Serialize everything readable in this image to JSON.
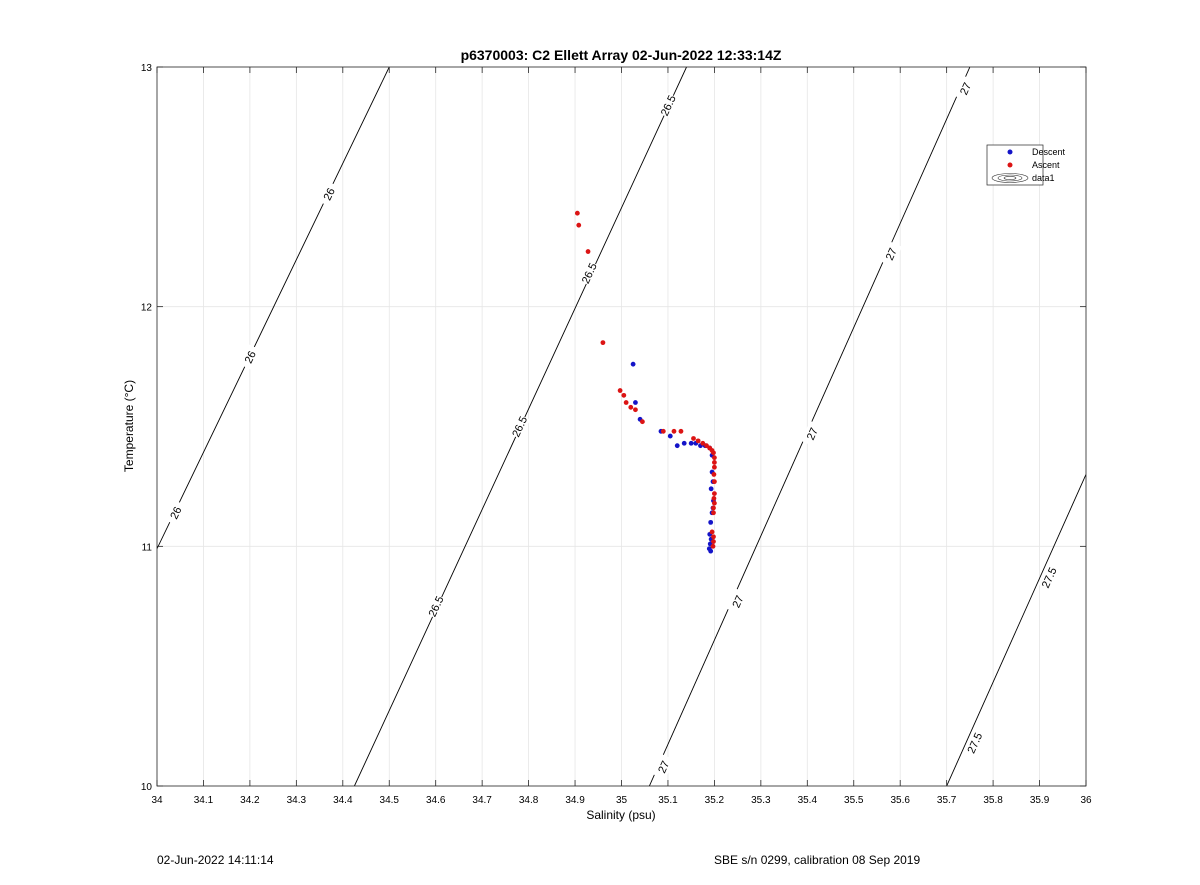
{
  "footer": {
    "left_text": "02-Jun-2022 14:11:14",
    "right_text": "SBE s/n 0299, calibration 08 Sep 2019"
  },
  "chart_data": {
    "type": "scatter",
    "title": "p6370003: C2 Ellett Array 02-Jun-2022 12:33:14Z",
    "xlabel": "Salinity (psu)",
    "ylabel": "Temperature (°C)",
    "xlim": [
      34,
      36
    ],
    "ylim": [
      10,
      13
    ],
    "xticks": [
      "34",
      "34.1",
      "34.2",
      "34.3",
      "34.4",
      "34.5",
      "34.6",
      "34.7",
      "34.8",
      "34.9",
      "35",
      "35.1",
      "35.2",
      "35.3",
      "35.4",
      "35.5",
      "35.6",
      "35.7",
      "35.8",
      "35.9",
      "36"
    ],
    "yticks": [
      "10",
      "11",
      "12",
      "13"
    ],
    "grid": true,
    "legend_position": "top-right",
    "colors": {
      "descent": "#1414c8",
      "ascent": "#dc1414",
      "contour": "#000000",
      "grid": "#e6e6e6"
    },
    "series": [
      {
        "name": "Descent",
        "color": "#1414c8",
        "points": [
          [
            35.025,
            11.76
          ],
          [
            35.03,
            11.6
          ],
          [
            35.04,
            11.53
          ],
          [
            35.085,
            11.48
          ],
          [
            35.105,
            11.46
          ],
          [
            35.12,
            11.42
          ],
          [
            35.135,
            11.43
          ],
          [
            35.15,
            11.43
          ],
          [
            35.16,
            11.43
          ],
          [
            35.17,
            11.42
          ],
          [
            35.18,
            11.42
          ],
          [
            35.19,
            11.41
          ],
          [
            35.195,
            11.38
          ],
          [
            35.195,
            11.31
          ],
          [
            35.197,
            11.27
          ],
          [
            35.193,
            11.24
          ],
          [
            35.198,
            11.19
          ],
          [
            35.197,
            11.16
          ],
          [
            35.195,
            11.14
          ],
          [
            35.192,
            11.1
          ],
          [
            35.19,
            11.05
          ],
          [
            35.193,
            11.03
          ],
          [
            35.191,
            11.01
          ],
          [
            35.189,
            10.99
          ],
          [
            35.192,
            10.98
          ]
        ]
      },
      {
        "name": "Ascent",
        "color": "#dc1414",
        "points": [
          [
            34.905,
            12.39
          ],
          [
            34.908,
            12.34
          ],
          [
            34.928,
            12.23
          ],
          [
            34.96,
            11.85
          ],
          [
            34.997,
            11.65
          ],
          [
            35.005,
            11.63
          ],
          [
            35.01,
            11.6
          ],
          [
            35.02,
            11.58
          ],
          [
            35.03,
            11.57
          ],
          [
            35.045,
            11.52
          ],
          [
            35.09,
            11.48
          ],
          [
            35.113,
            11.48
          ],
          [
            35.128,
            11.48
          ],
          [
            35.155,
            11.45
          ],
          [
            35.165,
            11.44
          ],
          [
            35.175,
            11.43
          ],
          [
            35.183,
            11.42
          ],
          [
            35.19,
            11.41
          ],
          [
            35.195,
            11.4
          ],
          [
            35.198,
            11.39
          ],
          [
            35.2,
            11.37
          ],
          [
            35.2,
            11.35
          ],
          [
            35.2,
            11.33
          ],
          [
            35.199,
            11.3
          ],
          [
            35.2,
            11.27
          ],
          [
            35.2,
            11.22
          ],
          [
            35.199,
            11.2
          ],
          [
            35.2,
            11.18
          ],
          [
            35.198,
            11.16
          ],
          [
            35.198,
            11.14
          ],
          [
            35.195,
            11.06
          ],
          [
            35.198,
            11.04
          ],
          [
            35.198,
            11.02
          ],
          [
            35.197,
            11.0
          ]
        ]
      }
    ],
    "contours": [
      {
        "label": "26",
        "points": [
          [
            34.0,
            10.99
          ],
          [
            34.5,
            13.0
          ]
        ],
        "labels": [
          [
            34.04,
            11.14
          ],
          [
            34.2,
            11.79
          ],
          [
            34.37,
            12.47
          ]
        ]
      },
      {
        "label": "26.5",
        "points": [
          [
            34.425,
            10.0
          ],
          [
            35.14,
            13.0
          ]
        ],
        "labels": [
          [
            34.6,
            10.75
          ],
          [
            34.78,
            11.5
          ],
          [
            34.93,
            12.14
          ],
          [
            35.1,
            12.84
          ]
        ]
      },
      {
        "label": "27",
        "points": [
          [
            35.06,
            10.0
          ],
          [
            35.75,
            13.0
          ]
        ],
        "labels": [
          [
            35.09,
            10.08
          ],
          [
            35.25,
            10.77
          ],
          [
            35.41,
            11.47
          ],
          [
            35.58,
            12.22
          ],
          [
            35.74,
            12.91
          ]
        ]
      },
      {
        "label": "27.5",
        "points": [
          [
            35.7,
            10.0
          ],
          [
            36.0,
            11.3
          ]
        ],
        "labels": [
          [
            35.76,
            10.18
          ],
          [
            35.92,
            10.87
          ]
        ]
      }
    ],
    "legend": [
      {
        "label": "Descent",
        "marker": "dot",
        "color": "#1414c8"
      },
      {
        "label": "Ascent",
        "marker": "dot",
        "color": "#dc1414"
      },
      {
        "label": "data1",
        "marker": "contour"
      }
    ]
  }
}
